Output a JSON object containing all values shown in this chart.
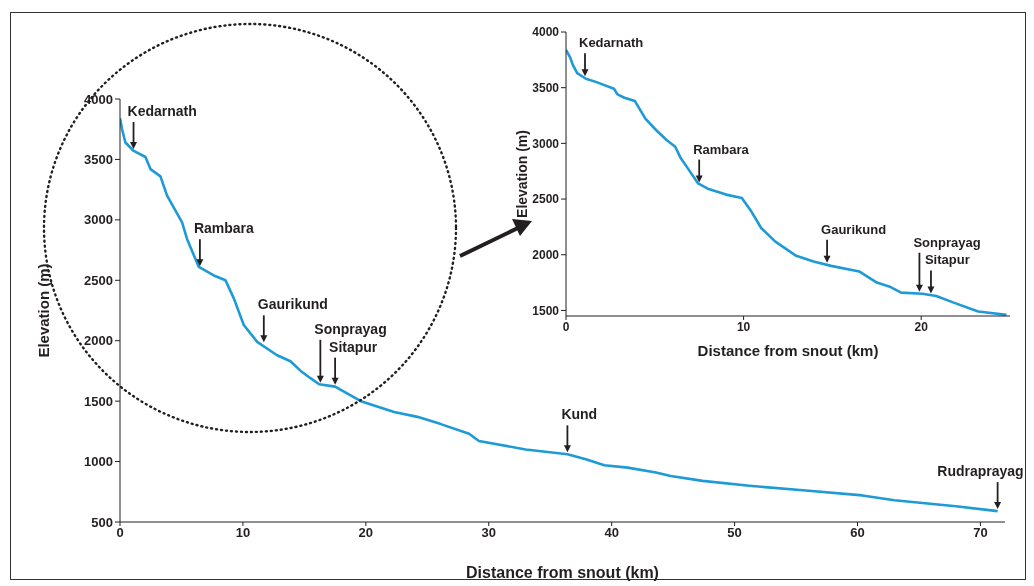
{
  "chart_data": [
    {
      "type": "line",
      "xlabel": "Distance from snout (km)",
      "ylabel": "Elevation (m)",
      "xlim": [
        0,
        72
      ],
      "ylim": [
        500,
        4000
      ],
      "xticks": [
        0,
        10,
        20,
        30,
        40,
        50,
        60,
        70
      ],
      "yticks": [
        500,
        1000,
        1500,
        2000,
        2500,
        3000,
        3500,
        4000
      ],
      "series": [
        {
          "color": "#1e9ad6",
          "x": [
            0,
            0.17,
            0.44,
            1.12,
            2.07,
            2.48,
            3.29,
            3.83,
            5.05,
            5.46,
            6.41,
            7.63,
            8.58,
            9.26,
            10.07,
            11.16,
            12.78,
            13.87,
            14.7,
            15.5,
            16.2,
            17.5,
            19.6,
            22.3,
            24.2,
            26.1,
            28.4,
            29.2,
            33,
            36.4,
            37.9,
            39.4,
            41.3,
            43.6,
            44.8,
            47.4,
            51.2,
            55.8,
            60.4,
            63,
            68,
            71.4
          ],
          "values": [
            3840,
            3750,
            3640,
            3570,
            3520,
            3420,
            3360,
            3200,
            2980,
            2840,
            2610,
            2540,
            2500,
            2350,
            2130,
            1990,
            1880,
            1830,
            1750,
            1690,
            1640,
            1620,
            1500,
            1410,
            1370,
            1310,
            1230,
            1170,
            1100,
            1060,
            1020,
            970,
            950,
            910,
            880,
            840,
            800,
            760,
            720,
            680,
            630,
            590
          ]
        }
      ],
      "annotations": [
        {
          "text": "Kedarnath",
          "x": 1.1,
          "y": 3570
        },
        {
          "text": "Rambara",
          "x": 6.5,
          "y": 2600
        },
        {
          "text": "Gaurikund",
          "x": 11.7,
          "y": 1970
        },
        {
          "text": "Sonprayag",
          "x": 16.3,
          "y": 1635
        },
        {
          "text": "Sitapur",
          "x": 17.5,
          "y": 1620
        },
        {
          "text": "Kund",
          "x": 36.4,
          "y": 1060
        },
        {
          "text": "Rudraprayag",
          "x": 71.4,
          "y": 590
        }
      ]
    },
    {
      "type": "line",
      "xlabel": "Distance from snout (km)",
      "ylabel": "Elevation (m)",
      "xlim": [
        0,
        25
      ],
      "ylim": [
        1450,
        4000
      ],
      "xticks": [
        0,
        10,
        20
      ],
      "yticks": [
        1500,
        2000,
        2500,
        3000,
        3500,
        4000
      ],
      "series": [
        {
          "color": "#1e9ad6",
          "x": [
            0,
            0.24,
            0.37,
            0.63,
            1.12,
            1.72,
            2.7,
            2.9,
            3.29,
            3.88,
            4.48,
            5.07,
            5.66,
            6.15,
            6.45,
            6.84,
            7.44,
            8.03,
            9.01,
            9.9,
            10.39,
            10.99,
            11.77,
            12.96,
            13.94,
            14.93,
            16.51,
            17.5,
            18.28,
            18.87,
            20.06,
            20.85,
            21.83,
            23.21,
            24.8
          ],
          "values": [
            3840,
            3770,
            3710,
            3630,
            3580,
            3550,
            3490,
            3440,
            3410,
            3380,
            3220,
            3120,
            3030,
            2970,
            2870,
            2780,
            2640,
            2590,
            2540,
            2510,
            2400,
            2240,
            2120,
            1990,
            1940,
            1900,
            1850,
            1750,
            1710,
            1660,
            1650,
            1630,
            1570,
            1490,
            1460
          ]
        }
      ],
      "annotations": [
        {
          "text": "Kedarnath",
          "x": 1.07,
          "y": 3585
        },
        {
          "text": "Rambara",
          "x": 7.5,
          "y": 2630
        },
        {
          "text": "Gaurikund",
          "x": 14.7,
          "y": 1910
        },
        {
          "text": "Sonprayag",
          "x": 19.9,
          "y": 1650
        },
        {
          "text": "Sitapur",
          "x": 20.55,
          "y": 1635
        }
      ]
    }
  ]
}
